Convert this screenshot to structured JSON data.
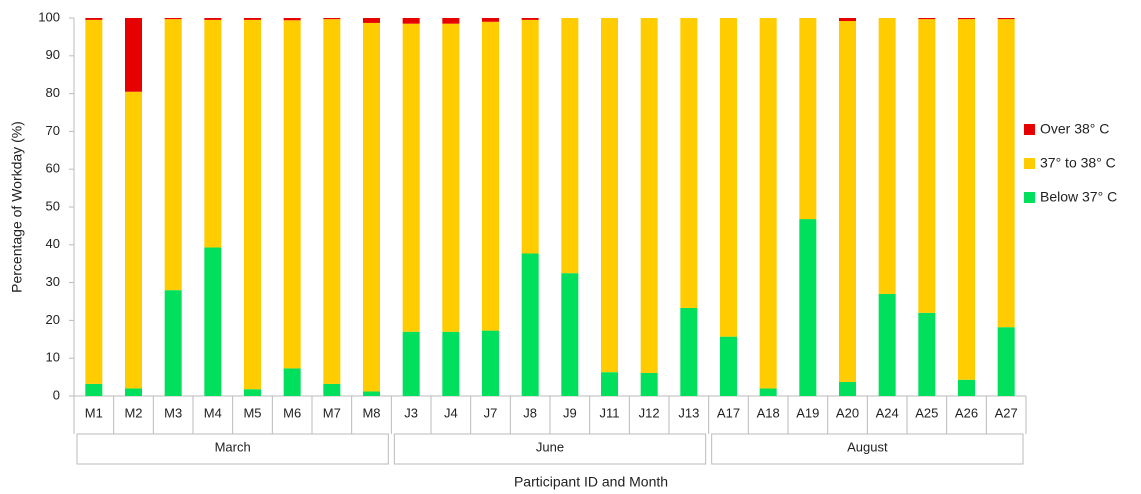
{
  "chart_data": {
    "type": "stacked_bar",
    "x_label": "Participant ID and Month",
    "y_label": "Percentage of Workday (%)",
    "categories": [
      "M1",
      "M2",
      "M3",
      "M4",
      "M5",
      "M6",
      "M7",
      "M8",
      "J3",
      "J4",
      "J7",
      "J8",
      "J9",
      "J11",
      "J12",
      "J13",
      "A17",
      "A18",
      "A19",
      "A20",
      "A24",
      "A25",
      "A26",
      "A27"
    ],
    "groups": [
      {
        "label": "March",
        "size": 8
      },
      {
        "label": "June",
        "size": 8
      },
      {
        "label": "August",
        "size": 8
      }
    ],
    "series": [
      {
        "name": "Below 37° C",
        "color": "#00e05c",
        "values": [
          3.2,
          2,
          28,
          39.3,
          1.8,
          7.3,
          3.2,
          1.2,
          17,
          17,
          17.3,
          37.7,
          32.5,
          6.3,
          6.1,
          23.3,
          15.7,
          2,
          46.8,
          3.7,
          27,
          22,
          4.3,
          18.2
        ]
      },
      {
        "name": "37° to 38° C",
        "color": "#ffcc00",
        "values": [
          96.3,
          78.5,
          71.7,
          60.2,
          97.7,
          92.1,
          96.5,
          97.5,
          81.5,
          81.5,
          81.7,
          61.8,
          67.5,
          93.7,
          93.9,
          76.7,
          84.3,
          98,
          53.2,
          95.5,
          73,
          77.7,
          95.4,
          81.5
        ]
      },
      {
        "name": "Over 38° C",
        "color": "#e60000",
        "values": [
          0.5,
          19.5,
          0.3,
          0.5,
          0.5,
          0.6,
          0.3,
          1.3,
          1.5,
          1.5,
          1,
          0.5,
          0,
          0,
          0,
          0,
          0,
          0,
          0,
          0.8,
          0,
          0.3,
          0.3,
          0.3
        ]
      }
    ],
    "ylim": [
      0,
      100
    ],
    "yticks": [
      0,
      10,
      20,
      30,
      40,
      50,
      60,
      70,
      80,
      90,
      100
    ],
    "legend": "right",
    "grid": false
  }
}
